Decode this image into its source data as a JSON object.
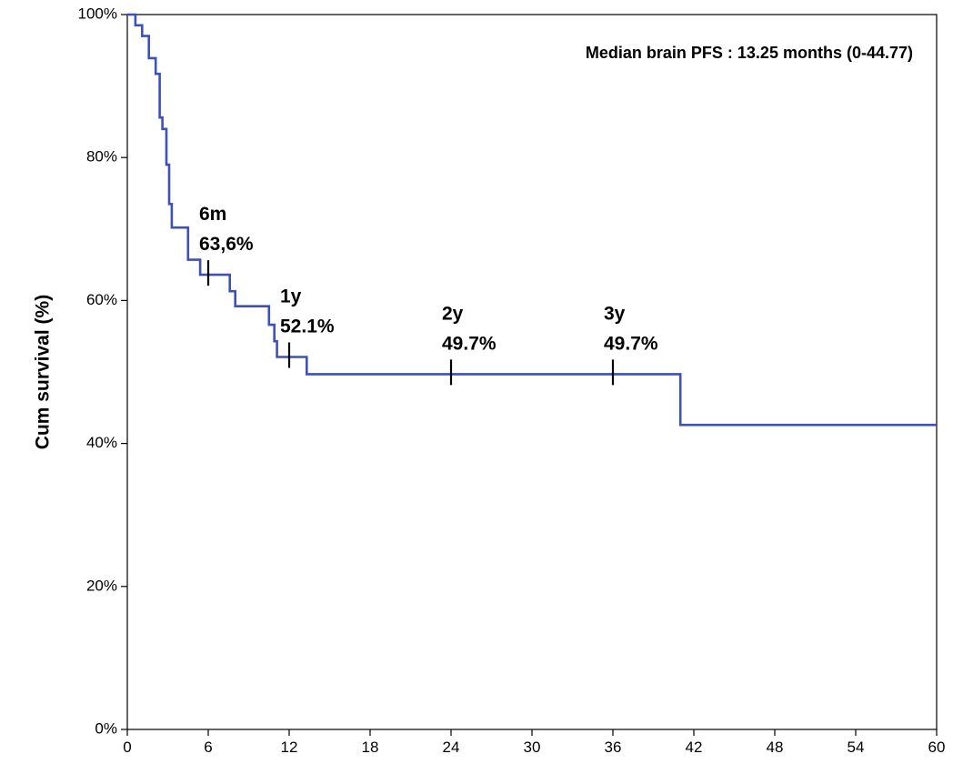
{
  "chart_data": {
    "type": "line",
    "style": "step",
    "ylabel": "Cum survival (%)",
    "xlabel": "",
    "xlim": [
      0,
      60
    ],
    "ylim": [
      0,
      100
    ],
    "x_ticks": [
      0,
      6,
      12,
      18,
      24,
      30,
      36,
      42,
      48,
      54,
      60
    ],
    "y_ticks": [
      0,
      20,
      40,
      60,
      80,
      100
    ],
    "y_tick_labels": [
      "0%",
      "20%",
      "40%",
      "60%",
      "80%",
      "100%"
    ],
    "grid": false,
    "line_color": "#3f51b5",
    "median_note": "Median brain PFS : 13.25  months (0-44.77)",
    "series": [
      {
        "x": [
          0,
          0.4,
          0.6,
          1.1,
          1.6,
          2.1,
          2.4,
          2.6,
          2.9,
          3.1,
          3.3,
          3.6,
          4.5,
          5.4,
          7.6,
          8.0,
          10.5,
          10.9,
          11.1,
          12.9,
          13.3,
          40.6,
          41.0,
          60
        ],
        "y": [
          100,
          100,
          98.5,
          97.0,
          93.9,
          91.7,
          85.6,
          84.0,
          79.0,
          73.5,
          70.2,
          70.2,
          65.7,
          63.6,
          61.3,
          59.2,
          56.6,
          54.3,
          52.1,
          52.1,
          49.7,
          49.7,
          42.6,
          42.6
        ]
      }
    ],
    "annotations": [
      {
        "label": "6m",
        "value": "63,6%",
        "x": 6,
        "y": 63.6
      },
      {
        "label": "1y",
        "value": "52.1%",
        "x": 12,
        "y": 52.1
      },
      {
        "label": "2y",
        "value": "49.7%",
        "x": 24,
        "y": 49.7
      },
      {
        "label": "3y",
        "value": "49.7%",
        "x": 36,
        "y": 49.7
      }
    ]
  }
}
